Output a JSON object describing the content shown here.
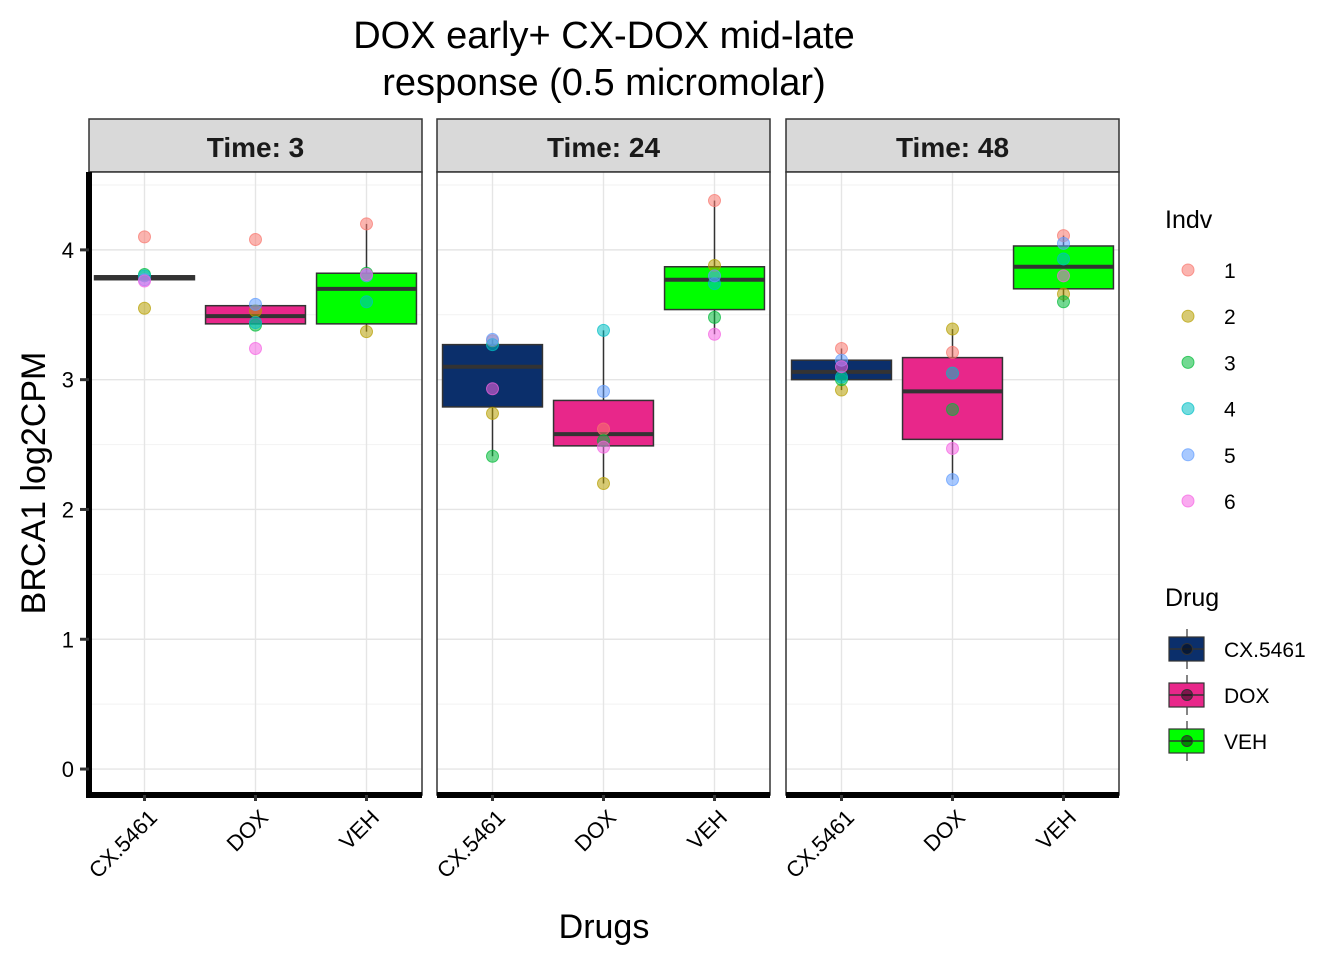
{
  "chart_data": {
    "type": "box",
    "title_lines": [
      "DOX early+ CX-DOX mid-late",
      "response (0.5 micromolar)"
    ],
    "xlabel": "Drugs",
    "ylabel": "BRCA1  log2CPM",
    "ylim": [
      -0.2,
      4.6
    ],
    "yticks": [
      0,
      1,
      2,
      3,
      4
    ],
    "categories": [
      "CX.5461",
      "DOX",
      "VEH"
    ],
    "grid": true,
    "legend_position": "right",
    "drug_colors": {
      "CX.5461": "#0b2f6b",
      "DOX": "#e8278a",
      "VEH": "#00ff00"
    },
    "indv_colors": {
      "1": "#f8766d",
      "2": "#b79f00",
      "3": "#00ba38",
      "4": "#00bfc4",
      "5": "#619cff",
      "6": "#f564e3"
    },
    "legends": {
      "indv": {
        "title": "Indv",
        "items": [
          "1",
          "2",
          "3",
          "4",
          "5",
          "6"
        ]
      },
      "drug": {
        "title": "Drug",
        "items": [
          "CX.5461",
          "DOX",
          "VEH"
        ]
      }
    },
    "panels": [
      {
        "label": "Time: 3",
        "boxes": [
          {
            "drug": "CX.5461",
            "q1": 3.77,
            "median": 3.79,
            "q3": 3.8,
            "whisker_low": 3.77,
            "whisker_high": 3.8,
            "points": [
              {
                "indv": "1",
                "y": 4.1
              },
              {
                "indv": "2",
                "y": 3.55
              },
              {
                "indv": "3",
                "y": 3.81
              },
              {
                "indv": "4",
                "y": 3.8
              },
              {
                "indv": "5",
                "y": 3.77
              },
              {
                "indv": "6",
                "y": 3.76
              }
            ]
          },
          {
            "drug": "DOX",
            "q1": 3.43,
            "median": 3.49,
            "q3": 3.57,
            "whisker_low": 3.43,
            "whisker_high": 3.57,
            "points": [
              {
                "indv": "1",
                "y": 4.08
              },
              {
                "indv": "2",
                "y": 3.53
              },
              {
                "indv": "3",
                "y": 3.42
              },
              {
                "indv": "4",
                "y": 3.44
              },
              {
                "indv": "5",
                "y": 3.58
              },
              {
                "indv": "6",
                "y": 3.24
              }
            ]
          },
          {
            "drug": "VEH",
            "q1": 3.43,
            "median": 3.7,
            "q3": 3.82,
            "whisker_low": 3.37,
            "whisker_high": 4.2,
            "points": [
              {
                "indv": "1",
                "y": 4.2
              },
              {
                "indv": "2",
                "y": 3.37
              },
              {
                "indv": "3",
                "y": 3.82
              },
              {
                "indv": "4",
                "y": 3.6
              },
              {
                "indv": "5",
                "y": 3.8
              },
              {
                "indv": "6",
                "y": 3.81
              }
            ]
          }
        ]
      },
      {
        "label": "Time: 24",
        "boxes": [
          {
            "drug": "CX.5461",
            "q1": 2.79,
            "median": 3.1,
            "q3": 3.27,
            "whisker_low": 2.41,
            "whisker_high": 3.31,
            "points": [
              {
                "indv": "1",
                "y": 3.3
              },
              {
                "indv": "2",
                "y": 2.74
              },
              {
                "indv": "3",
                "y": 2.41
              },
              {
                "indv": "4",
                "y": 3.27
              },
              {
                "indv": "5",
                "y": 3.31
              },
              {
                "indv": "6",
                "y": 2.93
              }
            ]
          },
          {
            "drug": "DOX",
            "q1": 2.49,
            "median": 2.58,
            "q3": 2.84,
            "whisker_low": 2.2,
            "whisker_high": 3.38,
            "points": [
              {
                "indv": "1",
                "y": 2.62
              },
              {
                "indv": "2",
                "y": 2.2
              },
              {
                "indv": "3",
                "y": 2.53
              },
              {
                "indv": "4",
                "y": 3.38
              },
              {
                "indv": "5",
                "y": 2.91
              },
              {
                "indv": "6",
                "y": 2.48
              }
            ]
          },
          {
            "drug": "VEH",
            "q1": 3.54,
            "median": 3.77,
            "q3": 3.87,
            "whisker_low": 3.35,
            "whisker_high": 4.38,
            "points": [
              {
                "indv": "1",
                "y": 4.38
              },
              {
                "indv": "2",
                "y": 3.88
              },
              {
                "indv": "3",
                "y": 3.48
              },
              {
                "indv": "4",
                "y": 3.74
              },
              {
                "indv": "5",
                "y": 3.8
              },
              {
                "indv": "6",
                "y": 3.35
              }
            ]
          }
        ]
      },
      {
        "label": "Time: 48",
        "boxes": [
          {
            "drug": "CX.5461",
            "q1": 3.0,
            "median": 3.06,
            "q3": 3.15,
            "whisker_low": 2.92,
            "whisker_high": 3.24,
            "points": [
              {
                "indv": "1",
                "y": 3.24
              },
              {
                "indv": "2",
                "y": 2.92
              },
              {
                "indv": "3",
                "y": 3.0
              },
              {
                "indv": "4",
                "y": 3.02
              },
              {
                "indv": "5",
                "y": 3.15
              },
              {
                "indv": "6",
                "y": 3.1
              }
            ]
          },
          {
            "drug": "DOX",
            "q1": 2.54,
            "median": 2.91,
            "q3": 3.17,
            "whisker_low": 2.23,
            "whisker_high": 3.39,
            "points": [
              {
                "indv": "1",
                "y": 3.21
              },
              {
                "indv": "2",
                "y": 3.39
              },
              {
                "indv": "3",
                "y": 2.77
              },
              {
                "indv": "4",
                "y": 3.05
              },
              {
                "indv": "5",
                "y": 2.23
              },
              {
                "indv": "6",
                "y": 2.47
              }
            ]
          },
          {
            "drug": "VEH",
            "q1": 3.7,
            "median": 3.87,
            "q3": 4.03,
            "whisker_low": 3.6,
            "whisker_high": 4.11,
            "points": [
              {
                "indv": "1",
                "y": 4.11
              },
              {
                "indv": "2",
                "y": 3.66
              },
              {
                "indv": "3",
                "y": 3.6
              },
              {
                "indv": "4",
                "y": 3.93
              },
              {
                "indv": "5",
                "y": 4.05
              },
              {
                "indv": "6",
                "y": 3.8
              }
            ]
          }
        ]
      }
    ]
  }
}
